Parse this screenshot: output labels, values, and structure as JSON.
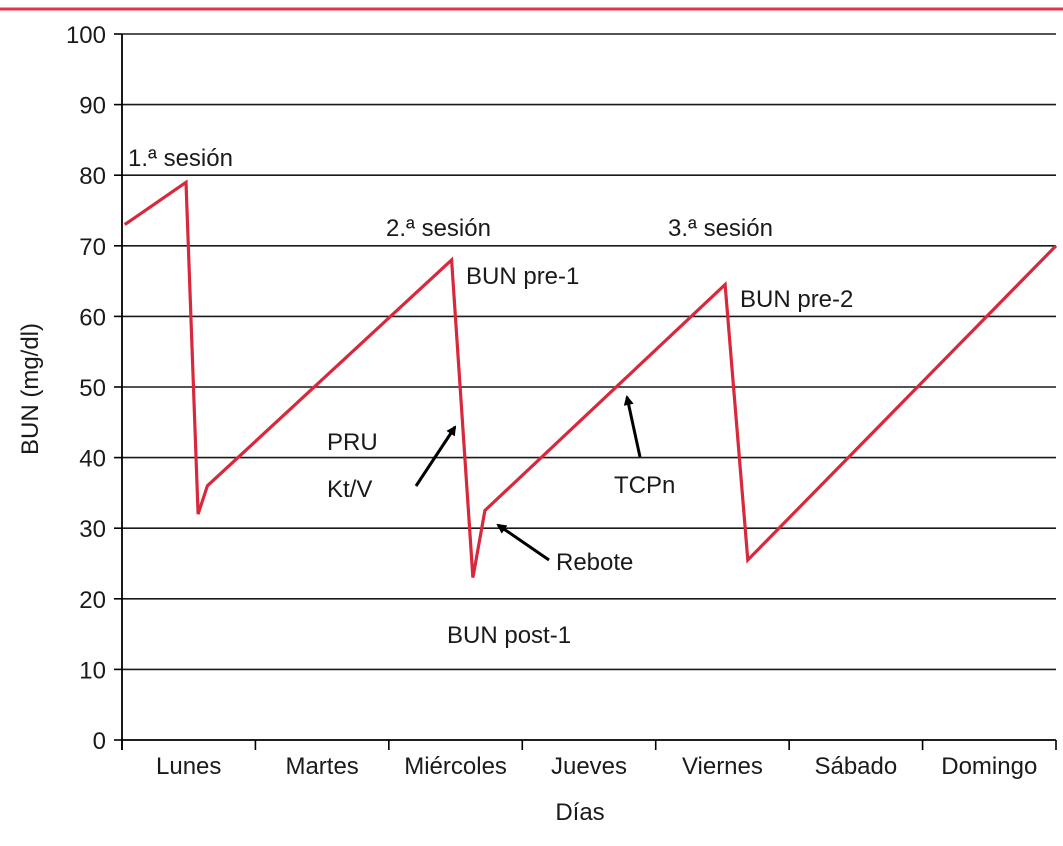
{
  "chart_data": {
    "type": "line",
    "title": "",
    "xlabel": "Días",
    "ylabel": "BUN (mg/dl)",
    "ylim": [
      0,
      100
    ],
    "yticks": [
      0,
      10,
      20,
      30,
      40,
      50,
      60,
      70,
      80,
      90,
      100
    ],
    "grid": "horizontal",
    "categories": [
      "Lunes",
      "Martes",
      "Miércoles",
      "Jueves",
      "Viernes",
      "Sábado",
      "Domingo"
    ],
    "series": [
      {
        "values": [
          {
            "day": 0.02,
            "bun": 73
          },
          {
            "day": 0.48,
            "bun": 79
          },
          {
            "day": 0.57,
            "bun": 32
          },
          {
            "day": 0.64,
            "bun": 36
          },
          {
            "day": 2.47,
            "bun": 68
          },
          {
            "day": 2.63,
            "bun": 23
          },
          {
            "day": 2.72,
            "bun": 32.5
          },
          {
            "day": 4.52,
            "bun": 64.5
          },
          {
            "day": 4.69,
            "bun": 25.5
          },
          {
            "day": 7.0,
            "bun": 70
          }
        ]
      }
    ],
    "colors": {
      "line": "#d8283c",
      "top_rule": "#e8334a",
      "grid": "#1a1a1a"
    },
    "annotations": [
      {
        "id": "sesion-1",
        "text": "1.ª sesión"
      },
      {
        "id": "sesion-2",
        "text": "2.ª sesión"
      },
      {
        "id": "sesion-3",
        "text": "3.ª sesión"
      },
      {
        "id": "bun-pre-1",
        "text": "BUN pre-1"
      },
      {
        "id": "bun-pre-2",
        "text": "BUN pre-2"
      },
      {
        "id": "pru",
        "text": "PRU"
      },
      {
        "id": "ktv",
        "text": "Kt/V"
      },
      {
        "id": "tcpn",
        "text": "TCPn"
      },
      {
        "id": "rebote",
        "text": "Rebote"
      },
      {
        "id": "bun-post-1",
        "text": "BUN post-1"
      }
    ]
  }
}
